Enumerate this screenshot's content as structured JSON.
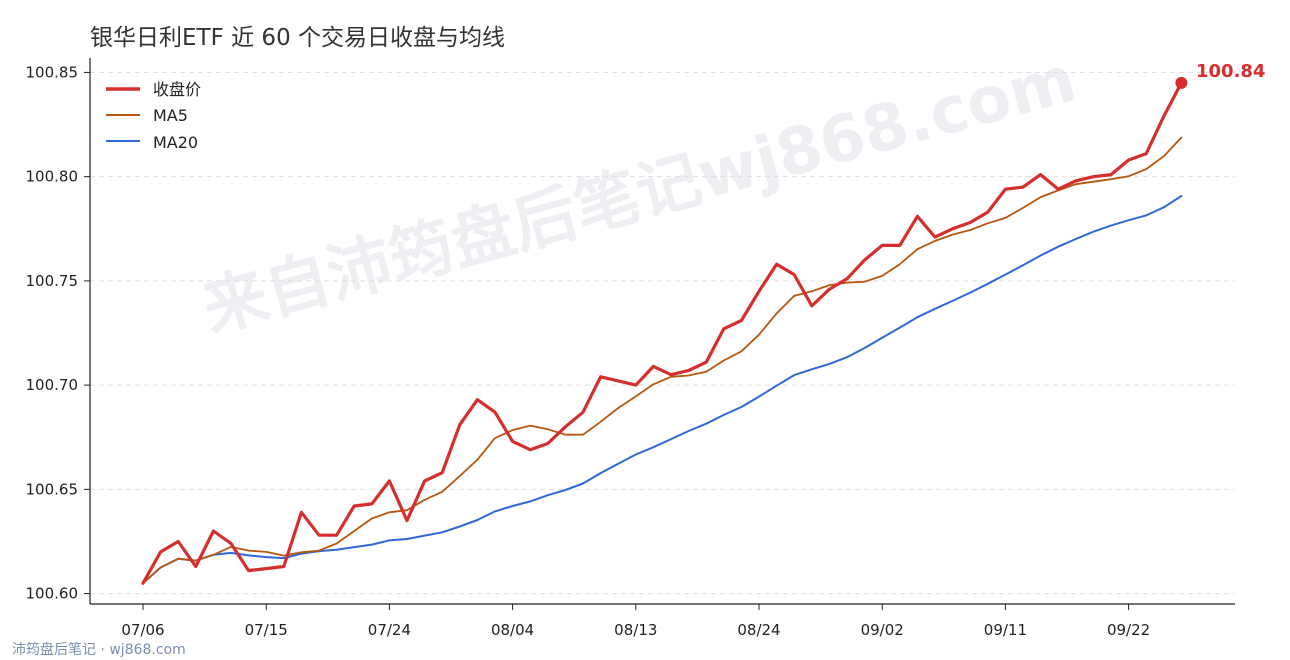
{
  "page_title": "银华日利ETF 近 60 个交易日收盘与均线",
  "watermark": "来自沛筠盘后笔记wj868.com",
  "footer": "沛筠盘后笔记 · wj868.com",
  "colors": {
    "close": "#d62d2d",
    "ma5": "#b8560f",
    "ma20": "#2f68d8",
    "grid": "#dddddd",
    "axis": "#222222"
  },
  "chart_data": {
    "type": "line",
    "title": "银华日利ETF 近 60 个交易日收盘与均线",
    "xlabel": "",
    "ylabel": "",
    "ylim": [
      100.595,
      100.855
    ],
    "yticks": [
      "100.60",
      "100.65",
      "100.70",
      "100.75",
      "100.80",
      "100.85"
    ],
    "x_tick_labels": [
      "07/06",
      "07/15",
      "07/24",
      "08/04",
      "08/13",
      "08/24",
      "09/02",
      "09/11",
      "09/22"
    ],
    "x_tick_index": [
      0,
      7,
      14,
      21,
      28,
      35,
      42,
      49,
      56
    ],
    "grid": "horizontal-dashed",
    "legend_position": "top-left",
    "end_label": "100.84",
    "series": [
      {
        "name": "收盘价",
        "values": [
          100.605,
          100.62,
          100.625,
          100.613,
          100.63,
          100.624,
          100.611,
          100.612,
          100.613,
          100.639,
          100.628,
          100.628,
          100.642,
          100.643,
          100.654,
          100.635,
          100.654,
          100.658,
          100.681,
          100.693,
          100.687,
          100.673,
          100.669,
          100.672,
          100.68,
          100.687,
          100.704,
          100.702,
          100.7,
          100.709,
          100.705,
          100.707,
          100.711,
          100.727,
          100.731,
          100.745,
          100.758,
          100.753,
          100.738,
          100.746,
          100.751,
          100.76,
          100.767,
          100.767,
          100.781,
          100.771,
          100.775,
          100.778,
          100.783,
          100.794,
          100.795,
          100.801,
          100.794,
          100.798,
          100.8,
          100.801,
          100.808,
          100.811,
          100.829,
          100.845
        ]
      },
      {
        "name": "MA5",
        "values": [
          100.605,
          100.6125,
          100.6167,
          100.6158,
          100.6186,
          100.6224,
          100.6206,
          100.62,
          100.6182,
          100.6198,
          100.6206,
          100.624,
          100.63,
          100.636,
          100.639,
          100.64,
          100.645,
          100.6488,
          100.6564,
          100.6642,
          100.6746,
          100.6784,
          100.6806,
          100.6788,
          100.6762,
          100.6762,
          100.6824,
          100.689,
          100.6946,
          100.7004,
          100.704,
          100.7046,
          100.7064,
          100.7118,
          100.7162,
          100.7242,
          100.7344,
          100.7428,
          100.745,
          100.748,
          100.7492,
          100.7496,
          100.7524,
          100.758,
          100.7652,
          100.7692,
          100.7722,
          100.7744,
          100.7776,
          100.7802,
          100.785,
          100.7902,
          100.7934,
          100.7964,
          100.7976,
          100.7988,
          100.8002,
          100.8036,
          100.8098,
          100.8188
        ]
      },
      {
        "name": "MA20",
        "values": [
          100.605,
          100.6125,
          100.6167,
          100.6158,
          100.6186,
          100.6195,
          100.6183,
          100.6175,
          100.617,
          100.6192,
          100.6204,
          100.621,
          100.6223,
          100.6235,
          100.6255,
          100.6262,
          100.6278,
          100.6294,
          100.6322,
          100.6353,
          100.6394,
          100.642,
          100.6442,
          100.6472,
          100.6497,
          100.6528,
          100.6578,
          100.6623,
          100.6667,
          100.6702,
          100.6741,
          100.678,
          100.6815,
          100.6857,
          100.6895,
          100.6945,
          100.6997,
          100.7048,
          100.7076,
          100.7102,
          100.7134,
          100.7178,
          100.7227,
          100.7276,
          100.7326,
          100.7366,
          100.7404,
          100.7444,
          100.7486,
          100.753,
          100.7575,
          100.7622,
          100.7664,
          100.7701,
          100.7736,
          100.7765,
          100.7791,
          100.7814,
          100.7853,
          100.7907
        ]
      }
    ]
  }
}
